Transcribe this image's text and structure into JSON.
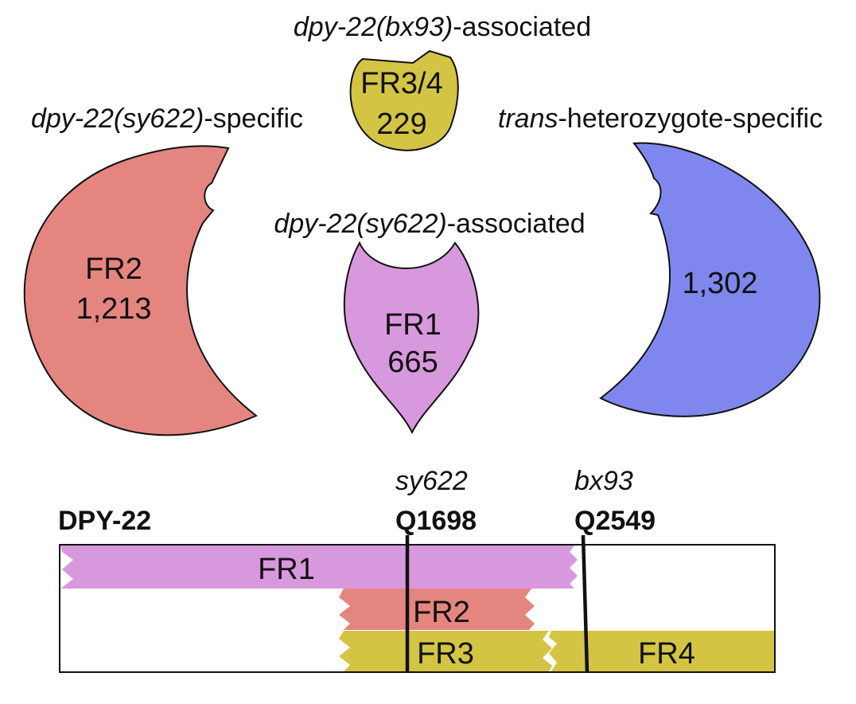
{
  "colors": {
    "fr1": "#d898dd",
    "fr2": "#e58580",
    "fr34": "#d3c443",
    "trans": "#7f87ef",
    "outline": "#111111"
  },
  "groups": {
    "bx93": {
      "italic": "dpy-22(bx93)",
      "rest": "-associated",
      "name": "FR3/4",
      "count": "229"
    },
    "sy622_specific": {
      "italic": "dpy-22(sy622)",
      "rest": "-specific",
      "name": "FR2",
      "count": "1,213"
    },
    "trans": {
      "italic": "trans",
      "rest": "-heterozygote-specific",
      "count": "1,302"
    },
    "sy622_assoc": {
      "italic": "dpy-22(sy622)",
      "rest": "-associated",
      "name": "FR1",
      "count": "665"
    }
  },
  "protein": {
    "name": "DPY-22",
    "mutations": [
      {
        "allele": "sy622",
        "position": "Q1698"
      },
      {
        "allele": "bx93",
        "position": "Q2549"
      }
    ],
    "fragments": [
      "FR1",
      "FR2",
      "FR3",
      "FR4"
    ]
  }
}
